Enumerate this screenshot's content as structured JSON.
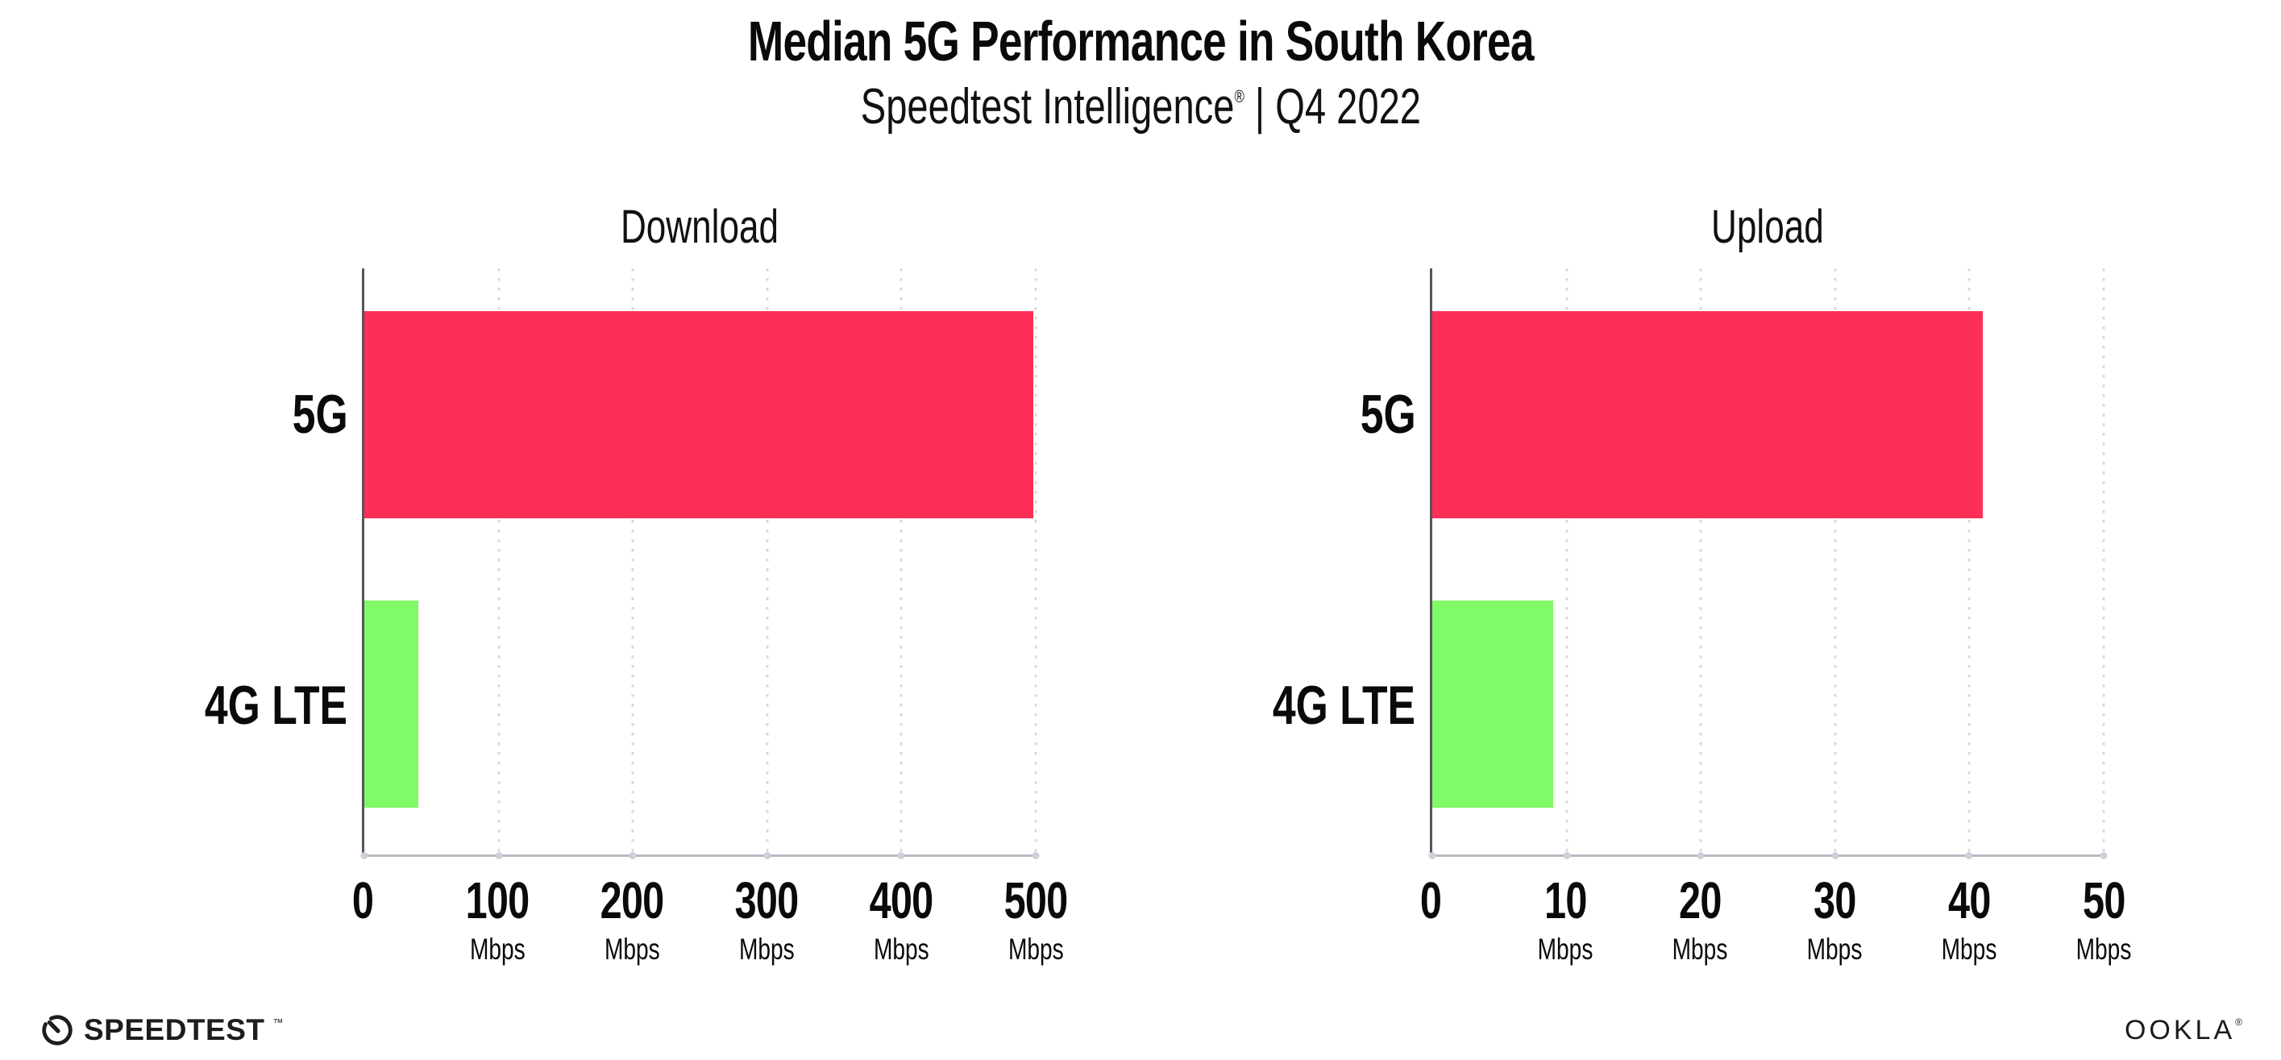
{
  "header": {
    "title": "Median 5G Performance in South Korea",
    "subtitle_brand": "Speedtest Intelligence",
    "subtitle_reg_mark": "®",
    "subtitle_rest": " | Q4 2022"
  },
  "colors": {
    "bar_5g": "#fd2e58",
    "bar_4g_lte": "#80fa66",
    "y_axis": "#55555e",
    "x_axis": "#b9b9c2",
    "gridline": "#d8d8e2",
    "text": "#0a0a0a"
  },
  "chart_data": [
    {
      "type": "bar",
      "orientation": "horizontal",
      "title": "Download",
      "categories": [
        "5G",
        "4G LTE"
      ],
      "values": [
        498,
        40
      ],
      "value_unit": "Mbps",
      "xlim": [
        0,
        500
      ],
      "xticks": [
        0,
        100,
        200,
        300,
        400,
        500
      ],
      "xtick_unit_label": "Mbps",
      "bar_colors": [
        "#fd2e58",
        "#80fa66"
      ],
      "grid": "vertical-dotted",
      "legend": "none"
    },
    {
      "type": "bar",
      "orientation": "horizontal",
      "title": "Upload",
      "categories": [
        "5G",
        "4G LTE"
      ],
      "values": [
        41,
        9
      ],
      "value_unit": "Mbps",
      "xlim": [
        0,
        50
      ],
      "xticks": [
        0,
        10,
        20,
        30,
        40,
        50
      ],
      "xtick_unit_label": "Mbps",
      "bar_colors": [
        "#fd2e58",
        "#80fa66"
      ],
      "grid": "vertical-dotted",
      "legend": "none"
    }
  ],
  "footer": {
    "speedtest_wordmark": "SPEEDTEST",
    "speedtest_trademark": "™",
    "ookla_wordmark": "OOKLA",
    "ookla_reg_mark": "®"
  }
}
